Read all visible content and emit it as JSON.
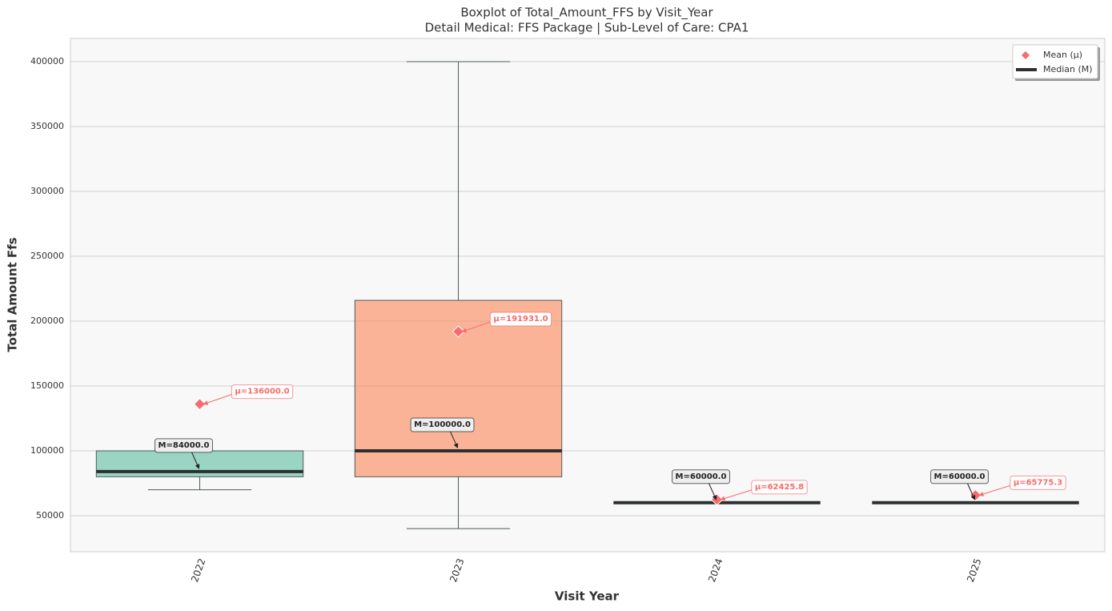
{
  "chart_data": {
    "type": "box",
    "title": "Boxplot of Total_Amount_FFS by Visit_Year",
    "subtitle": "Detail Medical: FFS Package | Sub-Level of Care: CPA1",
    "x_label": "Visit Year",
    "y_label": "Total Amount Ffs",
    "categories": [
      "2022",
      "2023",
      "2024",
      "2025"
    ],
    "boxes": [
      {
        "low": 70000,
        "q1": 80000,
        "median": 84000,
        "q3": 100000,
        "high": 100000,
        "mean": 136000,
        "color": "#66c2a5",
        "median_label": "M=84000.0",
        "mean_label": "μ=136000.0"
      },
      {
        "low": 40000,
        "q1": 80000,
        "median": 100000,
        "q3": 216000,
        "high": 400000,
        "mean": 191931,
        "color": "#fc8d62",
        "median_label": "M=100000.0",
        "mean_label": "μ=191931.0"
      },
      {
        "low": 60000,
        "q1": 60000,
        "median": 60000,
        "q3": 60000,
        "high": 60000,
        "mean": 62425.8,
        "color": "#8da0cb",
        "median_label": "M=60000.0",
        "mean_label": "μ=62425.8"
      },
      {
        "low": 60000,
        "q1": 60000,
        "median": 60000,
        "q3": 60000,
        "high": 60000,
        "mean": 65775.3,
        "color": "#e78ac3",
        "median_label": "M=60000.0",
        "mean_label": "μ=65775.3"
      }
    ],
    "mean_color": "#f76c6c",
    "median_color": "#2d3030",
    "legend": [
      {
        "name": "Mean (μ)"
      },
      {
        "name": "Median (M)"
      }
    ],
    "legend_loc": "upper right",
    "ylim": [
      22200,
      417900
    ],
    "yticks": [
      50000,
      100000,
      150000,
      200000,
      250000,
      300000,
      350000,
      400000
    ],
    "grid": true
  }
}
